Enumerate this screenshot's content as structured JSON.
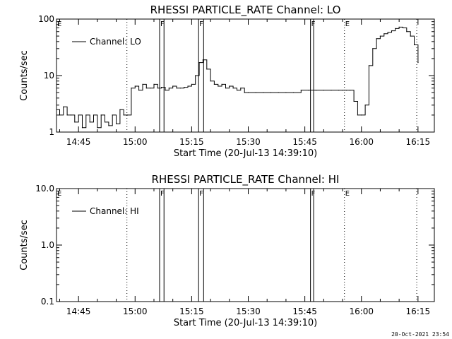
{
  "chart_data": [
    {
      "type": "line",
      "title": "RHESSI PARTICLE_RATE Channel: LO",
      "xlabel": "Start Time (20-Jul-13 14:39:10)",
      "ylabel": "Counts/sec",
      "yscale": "log",
      "xlim": [
        "14:39:10",
        "16:19:20"
      ],
      "ylim": [
        1,
        100
      ],
      "x_ticks": [
        "14:45",
        "15:00",
        "15:15",
        "15:30",
        "15:45",
        "16:00",
        "16:15"
      ],
      "y_ticks": [
        "1",
        "10",
        "100"
      ],
      "legend": "top-left",
      "grid": false,
      "series": [
        {
          "name": "Channel: LO",
          "x": [
            "14:39:10",
            "14:40:00",
            "14:41:00",
            "14:42:00",
            "14:43:00",
            "14:44:00",
            "14:45:00",
            "14:46:00",
            "14:47:00",
            "14:48:00",
            "14:49:00",
            "14:50:00",
            "14:51:00",
            "14:52:00",
            "14:53:00",
            "14:54:00",
            "14:55:00",
            "14:56:00",
            "14:57:00",
            "14:58:00",
            "14:59:00",
            "15:00:00",
            "15:01:00",
            "15:02:00",
            "15:03:00",
            "15:04:00",
            "15:05:00",
            "15:06:00",
            "15:07:00",
            "15:08:00",
            "15:09:00",
            "15:10:00",
            "15:11:00",
            "15:12:00",
            "15:13:00",
            "15:14:00",
            "15:15:00",
            "15:16:00",
            "15:17:00",
            "15:18:00",
            "15:19:00",
            "15:20:00",
            "15:21:00",
            "15:22:00",
            "15:23:00",
            "15:24:00",
            "15:25:00",
            "15:26:00",
            "15:27:00",
            "15:28:00",
            "15:29:00",
            "15:30:00",
            "15:32:00",
            "15:34:00",
            "15:36:00",
            "15:38:00",
            "15:40:00",
            "15:42:00",
            "15:44:00",
            "15:46:00",
            "15:48:00",
            "15:50:00",
            "15:52:00",
            "15:54:00",
            "15:55:00",
            "15:56:00",
            "15:57:00",
            "15:58:00",
            "15:59:00",
            "16:00:00",
            "16:01:00",
            "16:02:00",
            "16:03:00",
            "16:04:00",
            "16:05:00",
            "16:06:00",
            "16:07:00",
            "16:08:00",
            "16:09:00",
            "16:10:00",
            "16:11:00",
            "16:12:00",
            "16:13:00",
            "16:14:00",
            "16:15:00"
          ],
          "values": [
            2.5,
            2.0,
            2.8,
            2.0,
            2.0,
            1.5,
            2.0,
            1.2,
            2.0,
            1.5,
            2.0,
            1.2,
            2.0,
            1.5,
            1.3,
            2.0,
            1.4,
            2.5,
            2.0,
            2.0,
            6.0,
            6.5,
            5.5,
            7.0,
            6.0,
            6.0,
            7.0,
            6.0,
            6.2,
            5.5,
            6.0,
            6.5,
            6.0,
            6.0,
            6.2,
            6.5,
            7.0,
            10.0,
            17.0,
            19.0,
            13.0,
            8.0,
            7.0,
            6.5,
            7.0,
            6.0,
            6.5,
            6.0,
            5.5,
            6.0,
            5.0,
            5.0,
            5.0,
            5.0,
            5.0,
            5.0,
            5.0,
            5.0,
            5.5,
            5.5,
            5.5,
            5.5,
            5.5,
            5.5,
            5.5,
            5.5,
            5.5,
            3.5,
            2.0,
            2.0,
            3.0,
            15.0,
            30.0,
            45.0,
            50.0,
            55.0,
            58.0,
            62.0,
            68.0,
            72.0,
            70.0,
            60.0,
            50.0,
            35.0,
            17.0
          ]
        }
      ],
      "flag_marks": [
        {
          "label": "E",
          "time": "14:39:10",
          "style": "dotted"
        },
        {
          "label": "",
          "time": "14:57:50",
          "style": "dotted"
        },
        {
          "label": "F",
          "time": "15:06:30",
          "style": "solid"
        },
        {
          "label": "",
          "time": "15:07:40",
          "style": "solid"
        },
        {
          "label": "F",
          "time": "15:16:50",
          "style": "solid"
        },
        {
          "label": "",
          "time": "15:18:10",
          "style": "solid"
        },
        {
          "label": "F",
          "time": "15:46:30",
          "style": "solid"
        },
        {
          "label": "",
          "time": "15:47:20",
          "style": "solid"
        },
        {
          "label": "E",
          "time": "15:55:30",
          "style": "dotted"
        },
        {
          "label": "",
          "time": "16:14:40",
          "style": "dotted"
        }
      ]
    },
    {
      "type": "line",
      "title": "RHESSI PARTICLE_RATE Channel: HI",
      "xlabel": "Start Time (20-Jul-13 14:39:10)",
      "ylabel": "Counts/sec",
      "yscale": "log",
      "xlim": [
        "14:39:10",
        "16:19:20"
      ],
      "ylim": [
        0.1,
        10.0
      ],
      "x_ticks": [
        "14:45",
        "15:00",
        "15:15",
        "15:30",
        "15:45",
        "16:00",
        "16:15"
      ],
      "y_ticks": [
        "0.1",
        "1.0",
        "10.0"
      ],
      "legend": "top-left",
      "grid": false,
      "series": [
        {
          "name": "Channel: HI",
          "x": [],
          "values": []
        }
      ],
      "flag_marks": [
        {
          "label": "E",
          "time": "14:39:10",
          "style": "dotted"
        },
        {
          "label": "",
          "time": "14:57:50",
          "style": "dotted"
        },
        {
          "label": "F",
          "time": "15:06:30",
          "style": "solid"
        },
        {
          "label": "",
          "time": "15:07:40",
          "style": "solid"
        },
        {
          "label": "F",
          "time": "15:16:50",
          "style": "solid"
        },
        {
          "label": "",
          "time": "15:18:10",
          "style": "solid"
        },
        {
          "label": "F",
          "time": "15:46:30",
          "style": "solid"
        },
        {
          "label": "",
          "time": "15:47:20",
          "style": "solid"
        },
        {
          "label": "E",
          "time": "15:55:30",
          "style": "dotted"
        },
        {
          "label": "",
          "time": "16:14:40",
          "style": "dotted"
        }
      ]
    }
  ],
  "footer": {
    "timestamp": "20-Oct-2021 23:54"
  }
}
